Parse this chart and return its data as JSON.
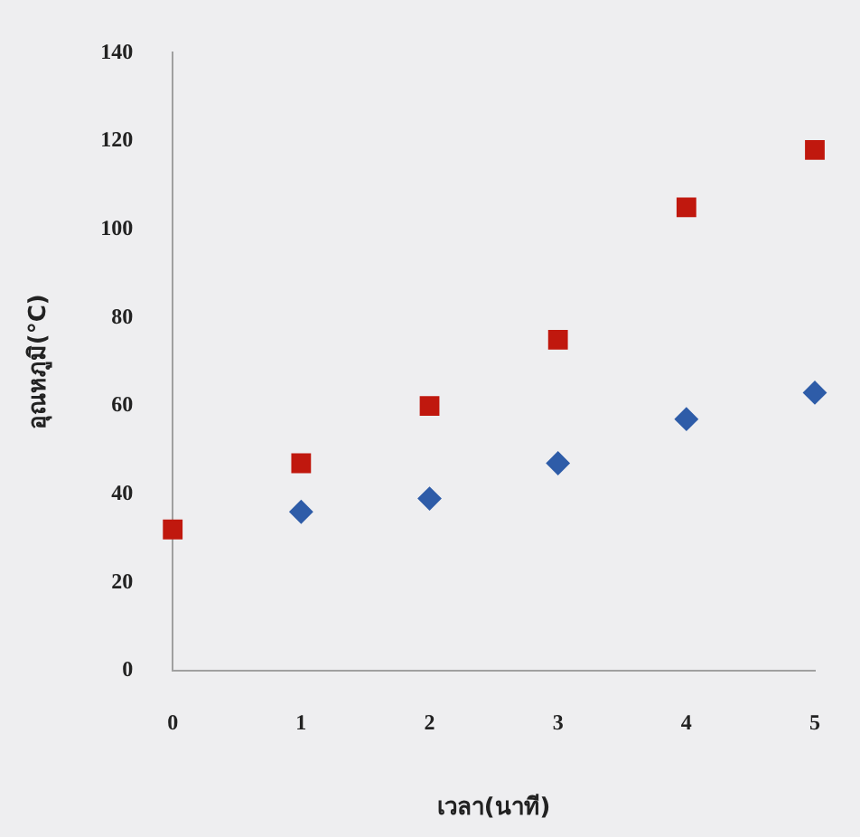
{
  "chart_data": {
    "type": "scatter",
    "xlabel": "เวลา(นาที)",
    "ylabel": "อุณหภูมิ(°C)",
    "series": [
      {
        "color": "#2e5ca8",
        "marker": "diamond",
        "x": [
          1,
          2,
          3,
          4,
          5
        ],
        "values": [
          36,
          39,
          47,
          57,
          63
        ]
      },
      {
        "color": "#c0180e",
        "marker": "square",
        "x": [
          0,
          1,
          2,
          3,
          4,
          5
        ],
        "values": [
          32,
          47,
          60,
          75,
          105,
          118
        ]
      }
    ],
    "xlim": [
      0,
      5
    ],
    "xticks": [
      0,
      1,
      2,
      3,
      4,
      5
    ],
    "ylim": [
      0,
      140
    ],
    "yticks": [
      0,
      20,
      40,
      60,
      80,
      100,
      120,
      140
    ],
    "grid": false,
    "legend": false
  }
}
